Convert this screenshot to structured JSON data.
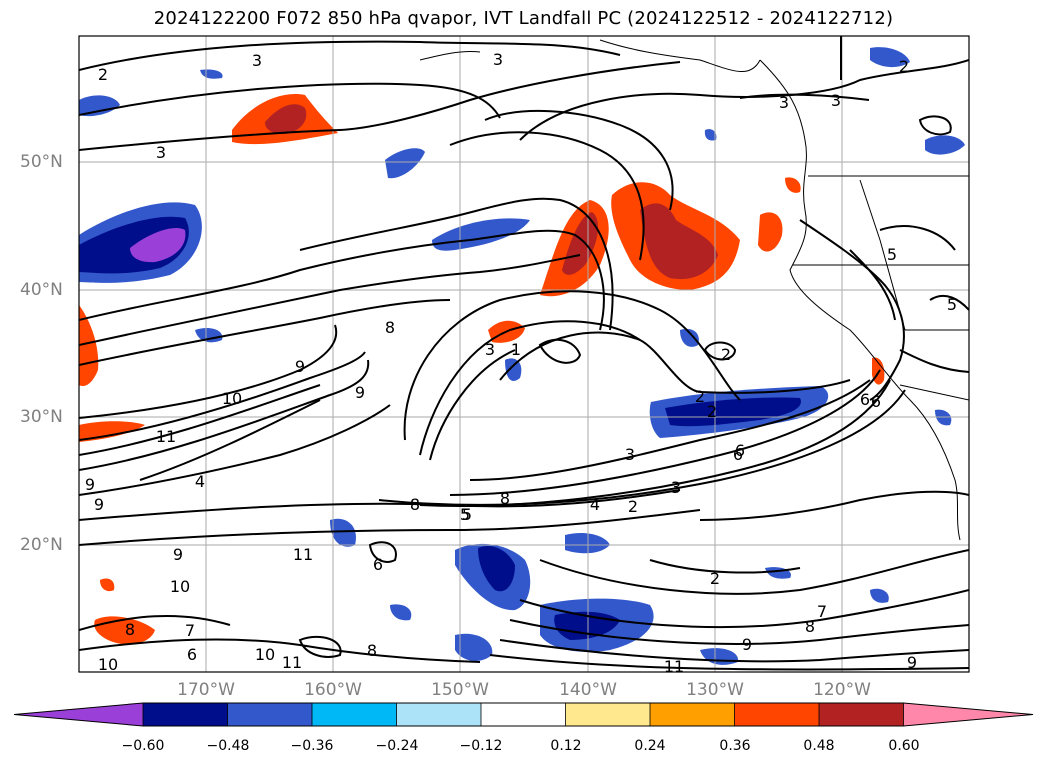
{
  "title": "2024122200 F072 850 hPa qvapor, IVT Landfall PC (2024122512 - 2024122712)",
  "latitude_labels": [
    "50°N",
    "40°N",
    "30°N",
    "20°N"
  ],
  "longitude_labels": [
    "170°W",
    "160°W",
    "150°W",
    "140°W",
    "130°W",
    "120°W"
  ],
  "colorbar": {
    "colors": [
      "#9b3fd9",
      "#000e8c",
      "#3358cc",
      "#00b8f5",
      "#ace3f8",
      "#ffffff",
      "#ffe88e",
      "#ffa000",
      "#ff4500",
      "#b22222",
      "#ff88aa"
    ],
    "tick_labels": [
      "−0.60",
      "−0.48",
      "−0.36",
      "−0.24",
      "−0.12",
      "0.12",
      "0.24",
      "0.36",
      "0.48",
      "0.60"
    ],
    "extend": "both"
  },
  "contour_labels": [
    "2",
    "3",
    "3",
    "3",
    "3",
    "3",
    "2",
    "2",
    "2",
    "1",
    "8",
    "9",
    "9",
    "10",
    "11",
    "5",
    "6",
    "9",
    "10",
    "11",
    "9",
    "9",
    "8",
    "10",
    "8",
    "10",
    "11",
    "6",
    "6",
    "6",
    "5",
    "4",
    "3",
    "2",
    "3",
    "2",
    "2",
    "6",
    "3",
    "4",
    "5",
    "8",
    "8",
    "11",
    "9",
    "8",
    "9",
    "7",
    "7",
    "5",
    "6"
  ]
}
